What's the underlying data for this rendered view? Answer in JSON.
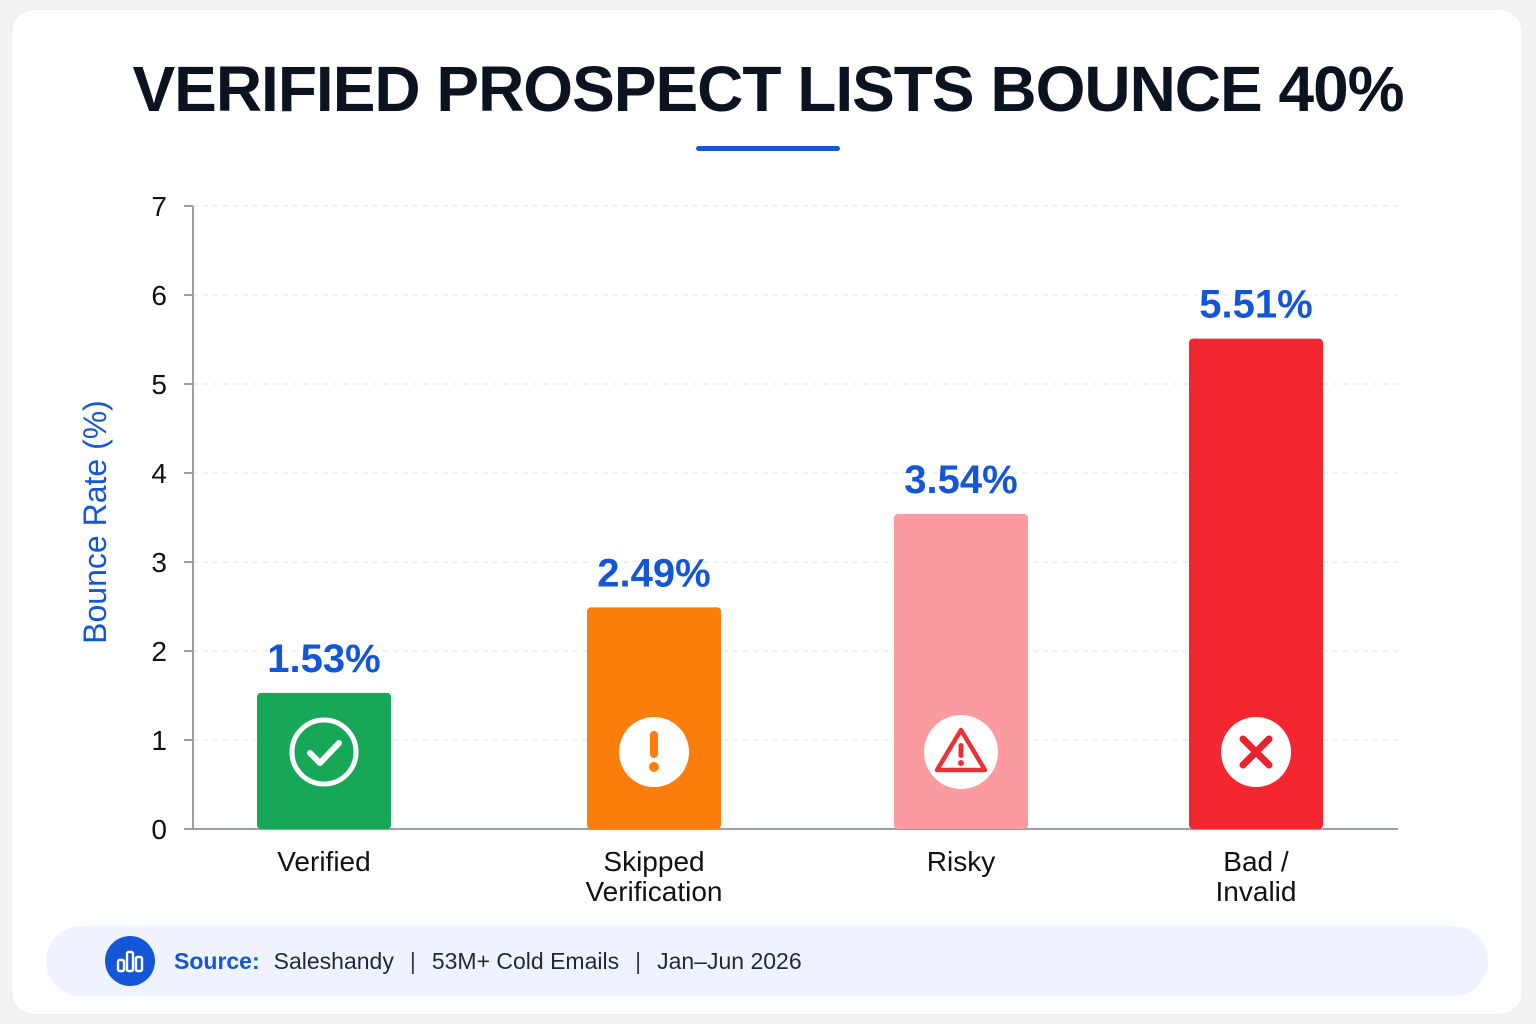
{
  "title": "VERIFIED PROSPECT LISTS BOUNCE 40%",
  "colors": {
    "title": "#0b1220",
    "accent": "#1457d6",
    "verified": "#16a757",
    "skipped": "#fb7d0c",
    "risky": "#fb9b9f",
    "bad": "#f4262f",
    "risky_icon": "#e8323a",
    "bad_icon": "#e8232b"
  },
  "chart_data": {
    "type": "bar",
    "title": "VERIFIED PROSPECT LISTS BOUNCE 40%",
    "xlabel": "",
    "ylabel": "Bounce Rate (%)",
    "ylim": [
      0,
      7
    ],
    "yticks": [
      0,
      1,
      2,
      3,
      4,
      5,
      6,
      7
    ],
    "grid": true,
    "legend": "none",
    "categories": [
      [
        "Verified"
      ],
      [
        "Skipped",
        "Verification"
      ],
      [
        "Risky"
      ],
      [
        "Bad /",
        "Invalid"
      ]
    ],
    "values": [
      1.53,
      2.49,
      3.54,
      5.51
    ],
    "data_labels": [
      "1.53%",
      "2.49%",
      "3.54%",
      "5.51%"
    ],
    "bar_colors": [
      "#16a757",
      "#fb7d0c",
      "#fb9b9f",
      "#f4262f"
    ],
    "bar_icons": [
      "check-circle-icon",
      "exclamation-circle-icon",
      "warning-triangle-icon",
      "x-circle-icon"
    ]
  },
  "footer": {
    "icon": "bar-chart-icon",
    "source_label": "Source:",
    "source_name": "Saleshandy",
    "separator": "|",
    "volume": "53M+ Cold Emails",
    "period": "Jan–Jun 2026"
  }
}
